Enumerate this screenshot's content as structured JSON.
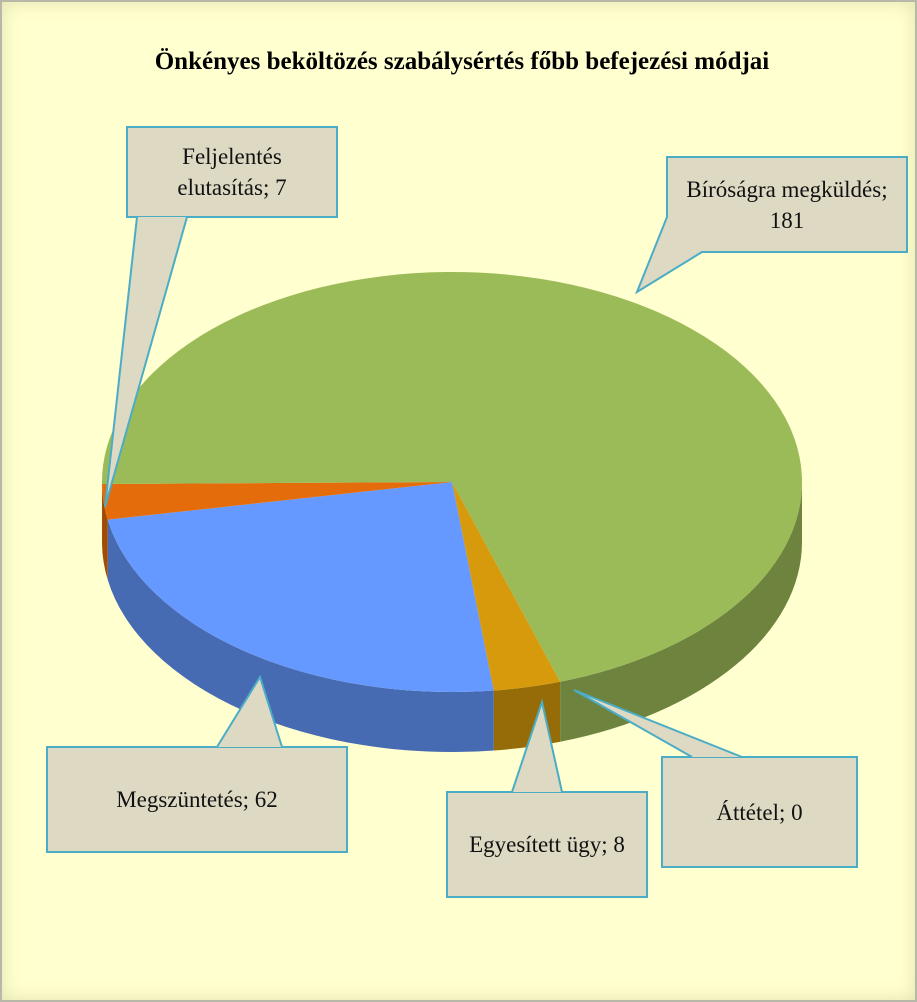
{
  "chart_data": {
    "type": "pie3d",
    "title": "Önkényes beköltözés szabálysértés főbb befejezési módjai",
    "values": [
      0,
      8,
      62,
      7,
      181
    ],
    "value_labels": [
      "Áttétel; 0",
      "Egyesített ügy; 8",
      "Megszüntetés; 62",
      "Feljelentés elutasítás; 7",
      "Bíróságra megküldés; 181"
    ],
    "colors": [
      "#4bacc6",
      "#d69a0c",
      "#6699ff",
      "#e46c0a",
      "#9bbb59"
    ]
  }
}
